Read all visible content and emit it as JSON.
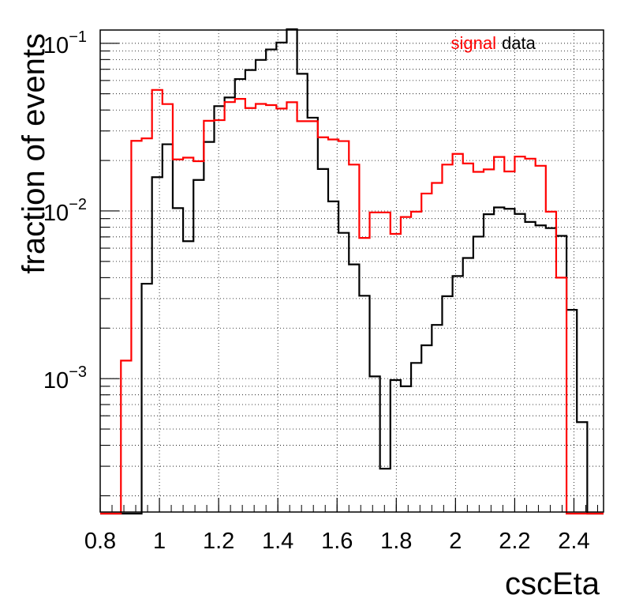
{
  "chart_data": {
    "type": "line",
    "style": "step-histogram",
    "xlabel": "cscEta",
    "ylabel": "fraction of events",
    "xlim": [
      0.8,
      2.5
    ],
    "ylim": [
      0.00016,
      0.12
    ],
    "yscale": "log",
    "grid": true,
    "legend_position": "top-right",
    "x_ticks": [
      0.8,
      1.0,
      1.2,
      1.4,
      1.6,
      1.8,
      2.0,
      2.2,
      2.4
    ],
    "x_tick_labels": [
      "0.8",
      "1",
      "1.2",
      "1.4",
      "1.6",
      "1.8",
      "2",
      "2.2",
      "2.4"
    ],
    "y_ticks": [
      {
        "base": "10",
        "exp": "−1",
        "value": 0.1
      },
      {
        "base": "10",
        "exp": "−2",
        "value": 0.01
      },
      {
        "base": "10",
        "exp": "−3",
        "value": 0.001
      }
    ],
    "bin_edges": [
      0.8,
      0.835,
      0.87,
      0.905,
      0.94,
      0.975,
      1.01,
      1.045,
      1.08,
      1.115,
      1.15,
      1.185,
      1.22,
      1.255,
      1.29,
      1.325,
      1.36,
      1.395,
      1.43,
      1.465,
      1.5,
      1.535,
      1.57,
      1.605,
      1.64,
      1.675,
      1.71,
      1.745,
      1.78,
      1.815,
      1.85,
      1.885,
      1.92,
      1.955,
      1.99,
      2.025,
      2.06,
      2.095,
      2.13,
      2.165,
      2.2,
      2.235,
      2.27,
      2.305,
      2.34,
      2.375,
      2.41,
      2.445,
      2.48,
      2.5
    ],
    "series": [
      {
        "name": "signal",
        "color": "#ff0000",
        "values": [
          0,
          0,
          0.00128,
          0.0262,
          0.0271,
          0.0527,
          0.0434,
          0.0203,
          0.0208,
          0.0198,
          0.0345,
          0.0348,
          0.0446,
          0.0466,
          0.0411,
          0.0435,
          0.0428,
          0.0408,
          0.0445,
          0.0343,
          0.0343,
          0.0275,
          0.0267,
          0.0261,
          0.0189,
          0.0069,
          0.0098,
          0.0098,
          0.0073,
          0.0092,
          0.0099,
          0.0127,
          0.0147,
          0.0189,
          0.0219,
          0.0192,
          0.0171,
          0.0177,
          0.021,
          0.0172,
          0.0211,
          0.0205,
          0.0186,
          0.0099,
          0.004,
          0,
          0,
          0,
          0
        ]
      },
      {
        "name": "data",
        "color": "#000000",
        "values": [
          0,
          0,
          0,
          0,
          0.00368,
          0.0159,
          0.025,
          0.0104,
          0.0066,
          0.0153,
          0.0258,
          0.0422,
          0.0475,
          0.0612,
          0.0693,
          0.0796,
          0.0919,
          0.101,
          0.125,
          0.0658,
          0.036,
          0.0178,
          0.0114,
          0.0074,
          0.0048,
          0.00312,
          0.00103,
          0.00029,
          0.00098,
          0.0009,
          0.00124,
          0.00158,
          0.00209,
          0.0031,
          0.00409,
          0.00524,
          0.00703,
          0.00956,
          0.0105,
          0.0103,
          0.0096,
          0.0086,
          0.0082,
          0.0079,
          0.0071,
          0.00257,
          0.00055,
          0,
          0
        ]
      }
    ]
  }
}
